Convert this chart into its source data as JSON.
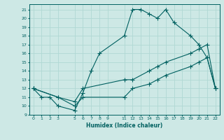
{
  "xlabel": "Humidex (Indice chaleur)",
  "bg_color": "#cde8e5",
  "line_color": "#006060",
  "grid_color": "#b0d8d4",
  "xlim": [
    -0.5,
    22.5
  ],
  "ylim": [
    9,
    21.6
  ],
  "xtick_labels": [
    "0",
    "1",
    "2",
    "3",
    "5",
    "6",
    "7",
    "8",
    "9",
    "11",
    "12",
    "13",
    "14",
    "15",
    "16",
    "17",
    "18",
    "19",
    "20",
    "21",
    "22"
  ],
  "xtick_pos": [
    0,
    1,
    2,
    3,
    5,
    6,
    7,
    8,
    9,
    11,
    12,
    13,
    14,
    15,
    16,
    17,
    18,
    19,
    20,
    21,
    22
  ],
  "yticks": [
    9,
    10,
    11,
    12,
    13,
    14,
    15,
    16,
    17,
    18,
    19,
    20,
    21
  ],
  "line1_x": [
    0,
    1,
    2,
    3,
    5,
    6,
    7,
    8,
    11,
    12,
    13,
    14,
    15,
    16,
    17,
    19,
    20,
    21,
    22
  ],
  "line1_y": [
    12,
    11,
    11,
    10,
    9.5,
    11.5,
    14,
    16,
    18,
    21,
    21,
    20.5,
    20,
    21,
    19.5,
    18,
    17,
    15.5,
    12
  ],
  "line2_x": [
    0,
    3,
    5,
    6,
    11,
    12,
    14,
    15,
    16,
    19,
    20,
    21,
    22
  ],
  "line2_y": [
    12,
    11,
    10.5,
    12,
    13,
    13,
    14,
    14.5,
    15,
    16,
    16.5,
    17,
    12
  ],
  "line3_x": [
    0,
    3,
    5,
    6,
    11,
    12,
    14,
    15,
    16,
    19,
    20,
    21,
    22
  ],
  "line3_y": [
    12,
    11,
    10,
    11,
    11,
    12,
    12.5,
    13,
    13.5,
    14.5,
    15,
    15.5,
    12
  ]
}
